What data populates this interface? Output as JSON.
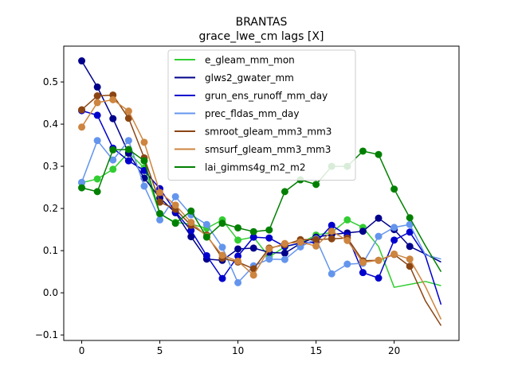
{
  "chart_data": {
    "type": "line",
    "title": "BRANTAS",
    "subtitle": "grace_lwe_cm lags [X]",
    "xlabel": "",
    "ylabel": "",
    "xlim": [
      -1.15,
      24.15
    ],
    "ylim": [
      -0.113,
      0.585
    ],
    "xticks": [
      0,
      5,
      10,
      15,
      20
    ],
    "yticks": [
      -0.1,
      0.0,
      0.1,
      0.2,
      0.3,
      0.4,
      0.5
    ],
    "ytick_labels": [
      "−0.1",
      "0.0",
      "0.1",
      "0.2",
      "0.3",
      "0.4",
      "0.5"
    ],
    "grid": false,
    "legend_position": "top-center",
    "x": [
      0,
      1,
      2,
      3,
      4,
      5,
      6,
      7,
      8,
      9,
      10,
      11,
      12,
      13,
      14,
      15,
      16,
      17,
      18,
      19,
      20,
      21,
      22,
      23
    ],
    "series": [
      {
        "name": "e_gleam_mm_mon",
        "color": "#32cd32",
        "values": [
          0.261,
          0.27,
          0.293,
          0.333,
          0.296,
          0.187,
          0.167,
          0.163,
          0.153,
          0.173,
          0.125,
          0.132,
          0.085,
          0.109,
          0.118,
          0.137,
          0.143,
          0.173,
          0.155,
          0.11,
          0.013,
          0.02,
          0.027,
          0.017
        ],
        "markers": [
          0,
          1,
          2,
          3,
          4,
          5,
          6,
          7,
          8,
          9,
          10,
          11,
          12,
          13,
          14,
          15,
          16,
          17,
          18
        ]
      },
      {
        "name": "glws2_gwater_mm",
        "color": "#00008b",
        "values": [
          0.55,
          0.488,
          0.413,
          0.331,
          0.272,
          0.225,
          0.19,
          0.133,
          0.08,
          0.077,
          0.104,
          0.106,
          0.096,
          0.094,
          0.117,
          0.132,
          0.138,
          0.142,
          0.146,
          0.177,
          0.15,
          0.11,
          0.092,
          0.073
        ],
        "markers": [
          0,
          1,
          2,
          3,
          4,
          5,
          6,
          7,
          8,
          9,
          10,
          11,
          12,
          13,
          14,
          15,
          16,
          17,
          18,
          19,
          20,
          21
        ]
      },
      {
        "name": "grun_ens_runoff_mm_day",
        "color": "#0000cd",
        "values": [
          0.432,
          0.421,
          0.343,
          0.313,
          0.29,
          0.247,
          0.192,
          0.148,
          0.088,
          0.034,
          0.087,
          0.132,
          0.13,
          0.11,
          0.118,
          0.12,
          0.16,
          0.136,
          0.048,
          0.035,
          0.125,
          0.144,
          0.088,
          -0.028
        ],
        "markers": [
          0,
          1,
          2,
          3,
          4,
          5,
          6,
          7,
          8,
          9,
          10,
          11,
          12,
          13,
          14,
          15,
          16,
          17,
          18,
          19,
          20,
          21
        ]
      },
      {
        "name": "prec_fldas_mm_day",
        "color": "#6495ed",
        "values": [
          0.262,
          0.361,
          0.315,
          0.361,
          0.253,
          0.173,
          0.228,
          0.185,
          0.162,
          0.108,
          0.024,
          0.064,
          0.08,
          0.079,
          0.109,
          0.128,
          0.045,
          0.068,
          0.07,
          0.134,
          0.155,
          0.162,
          0.09,
          0.08
        ],
        "markers": [
          0,
          1,
          2,
          3,
          4,
          5,
          6,
          7,
          8,
          9,
          10,
          11,
          12,
          13,
          14,
          15,
          16,
          17,
          18,
          19,
          20,
          21
        ]
      },
      {
        "name": "smroot_gleam_mm3_mm3",
        "color": "#8b4513",
        "values": [
          0.434,
          0.467,
          0.469,
          0.414,
          0.32,
          0.215,
          0.198,
          0.16,
          0.137,
          0.082,
          0.073,
          0.057,
          0.106,
          0.114,
          0.126,
          0.126,
          0.128,
          0.13,
          0.076,
          0.077,
          0.091,
          0.063,
          -0.019,
          -0.078
        ],
        "markers": [
          0,
          1,
          2,
          3,
          4,
          5,
          6,
          7,
          8,
          9,
          10,
          11,
          12,
          13,
          14,
          15,
          16,
          17,
          18,
          19,
          20,
          21
        ]
      },
      {
        "name": "smsurf_gleam_mm3_mm3",
        "color": "#cd853f",
        "values": [
          0.393,
          0.451,
          0.458,
          0.431,
          0.357,
          0.238,
          0.208,
          0.167,
          0.134,
          0.089,
          0.075,
          0.042,
          0.104,
          0.117,
          0.12,
          0.111,
          0.146,
          0.124,
          0.072,
          0.077,
          0.092,
          0.08,
          0.015,
          -0.063
        ],
        "markers": [
          0,
          1,
          2,
          3,
          4,
          5,
          6,
          7,
          8,
          9,
          10,
          11,
          12,
          13,
          14,
          15,
          16,
          17,
          18,
          19,
          20,
          21
        ]
      },
      {
        "name": "lai_gimms4g_m2_m2",
        "color": "#008000",
        "values": [
          0.249,
          0.24,
          0.339,
          0.34,
          0.313,
          0.188,
          0.165,
          0.194,
          0.132,
          0.165,
          0.154,
          0.145,
          0.149,
          0.24,
          0.268,
          0.257,
          0.3,
          0.3,
          0.336,
          0.328,
          0.246,
          0.178,
          0.112,
          0.05
        ],
        "markers": [
          0,
          1,
          2,
          3,
          4,
          5,
          6,
          7,
          8,
          9,
          10,
          11,
          12,
          13,
          14,
          15,
          16,
          17,
          18,
          19,
          20,
          21
        ]
      }
    ]
  }
}
